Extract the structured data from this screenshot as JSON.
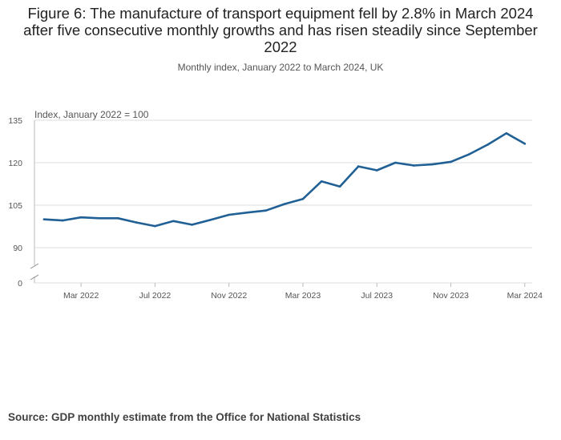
{
  "title": "Figure 6: The manufacture of transport equipment fell by 2.8% in March 2024 after five consecutive monthly growths and has risen steadily since September 2022",
  "subtitle": "Monthly index, January 2022 to March 2024, UK",
  "source": "Source: GDP monthly estimate from the Office for National Statistics",
  "colors": {
    "line": "#206095",
    "grid": "#dddddd",
    "axis": "#bbbbbb"
  },
  "chart_data": {
    "type": "line",
    "title": "Figure 6: The manufacture of transport equipment fell by 2.8% in March 2024 after five consecutive monthly growths and has risen steadily since September 2022",
    "ylabel": "Index, January 2022 = 100",
    "xlabel": "",
    "ylim": [
      85,
      135
    ],
    "y_ticks": [
      135,
      120,
      105,
      90
    ],
    "y_break_label": "0",
    "x_tick_labels": [
      "Mar 2022",
      "Jul 2022",
      "Nov 2022",
      "Mar 2023",
      "Jul 2023",
      "Nov 2023",
      "Mar 2024"
    ],
    "x_tick_indices": [
      2,
      6,
      10,
      14,
      18,
      22,
      26
    ],
    "series": [
      {
        "name": "Manufacture of transport equipment",
        "categories": [
          "Jan 2022",
          "Feb 2022",
          "Mar 2022",
          "Apr 2022",
          "May 2022",
          "Jun 2022",
          "Jul 2022",
          "Aug 2022",
          "Sep 2022",
          "Oct 2022",
          "Nov 2022",
          "Dec 2022",
          "Jan 2023",
          "Feb 2023",
          "Mar 2023",
          "Apr 2023",
          "May 2023",
          "Jun 2023",
          "Jul 2023",
          "Aug 2023",
          "Sep 2023",
          "Oct 2023",
          "Nov 2023",
          "Dec 2023",
          "Jan 2024",
          "Feb 2024",
          "Mar 2024"
        ],
        "values": [
          100.0,
          99.6,
          100.7,
          100.4,
          100.4,
          98.9,
          97.6,
          99.4,
          98.1,
          99.8,
          101.6,
          102.4,
          103.1,
          105.4,
          107.2,
          113.4,
          111.6,
          118.7,
          117.3,
          120.0,
          119.0,
          119.4,
          120.3,
          123.0,
          126.4,
          130.4,
          126.7
        ]
      }
    ]
  }
}
